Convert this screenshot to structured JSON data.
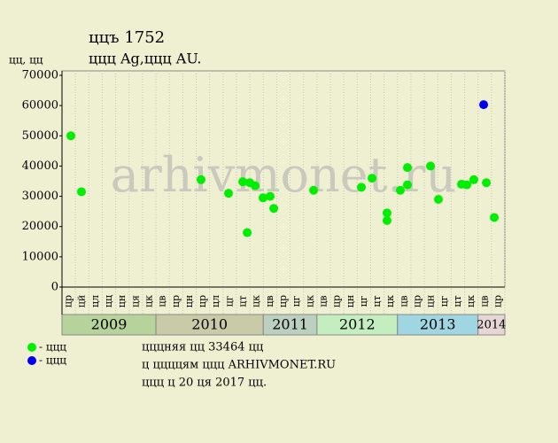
{
  "chart_data": {
    "type": "scatter",
    "title": "ццъ 1752",
    "subtitle": "ццц Ag,ццц AU.",
    "y_label": "цц, цц",
    "watermark": "arhivmonet.ru",
    "xlim": [
      0,
      33
    ],
    "ylim": [
      0,
      70000
    ],
    "yticks": [
      0,
      10000,
      20000,
      30000,
      40000,
      50000,
      60000,
      70000
    ],
    "years": [
      {
        "year": "2009",
        "color": "#b7d39c",
        "months": [
          "цр",
          "цй",
          "цл",
          "цц",
          "цн",
          "ця",
          "цк"
        ]
      },
      {
        "year": "2010",
        "color": "#c9cba8",
        "months": [
          "цв",
          "цр",
          "цн",
          "цр",
          "цл",
          "цг",
          "цт",
          "цк"
        ]
      },
      {
        "year": "2011",
        "color": "#bcd0c0",
        "months": [
          "цв",
          "цр",
          "цг",
          "цк"
        ]
      },
      {
        "year": "2012",
        "color": "#c4eec0",
        "months": [
          "цв",
          "цр",
          "цн",
          "цг",
          "цт",
          "цк"
        ]
      },
      {
        "year": "2013",
        "color": "#a0d6e2",
        "months": [
          "цв",
          "цр",
          "цн",
          "цг",
          "цт",
          "цк"
        ]
      },
      {
        "year": "2014",
        "color": "#e6d6d6",
        "months": [
          "цв",
          "цр"
        ]
      }
    ],
    "series": [
      {
        "name": "- ццц",
        "color": "#00ee00",
        "x": [
          0.66,
          1.45,
          10.36,
          12.41,
          13.47,
          13.8,
          13.99,
          14.39,
          14.98,
          15.51,
          15.78,
          18.75,
          22.31,
          23.1,
          24.22,
          24.22,
          25.21,
          25.74,
          25.74,
          27.46,
          28.05,
          29.77,
          30.17,
          30.69,
          31.62,
          32.21
        ],
        "values": [
          50000,
          31500,
          35500,
          31000,
          34800,
          18000,
          34500,
          33500,
          29500,
          30000,
          26000,
          32000,
          33000,
          36000,
          24500,
          22000,
          32000,
          39500,
          33800,
          40000,
          29000,
          34000,
          33800,
          35500,
          34500,
          23000
        ]
      },
      {
        "name": "- ццц",
        "color": "#0000ee",
        "x": [
          31.42
        ],
        "values": [
          60300
        ]
      }
    ],
    "notes": [
      "цццняя цц 33464 цц",
      "ц ццццям ццц ARHIVMONET.RU",
      "ццц ц 20 ця 2017 цц."
    ]
  }
}
